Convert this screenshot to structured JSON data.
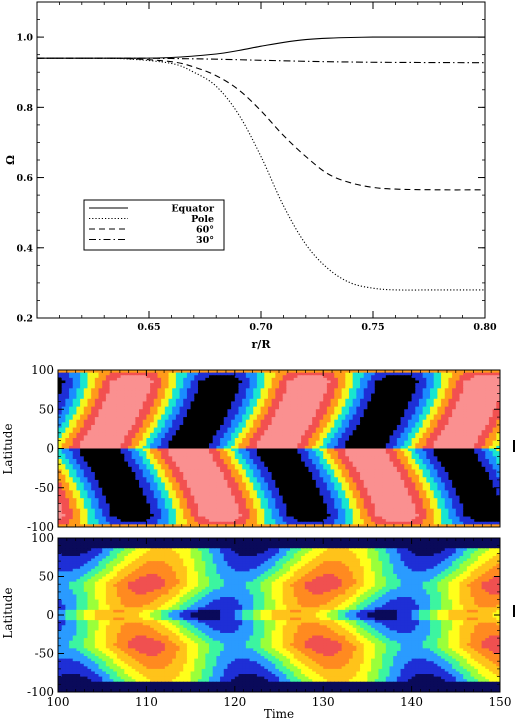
{
  "chart_data": [
    {
      "type": "line",
      "xlabel": "r/R",
      "ylabel": "Ω",
      "xlim": [
        0.6,
        0.8
      ],
      "ylim": [
        0.2,
        1.1
      ],
      "x_ticks": [
        "0.65",
        "0.70",
        "0.75",
        "0.80"
      ],
      "y_ticks": [
        "0.2",
        "0.4",
        "0.6",
        "0.8",
        "1.0"
      ],
      "legend_position": "lower-left",
      "series": [
        {
          "name": "Equator",
          "style": "solid",
          "x": [
            0.6,
            0.62,
            0.64,
            0.66,
            0.68,
            0.69,
            0.7,
            0.71,
            0.72,
            0.73,
            0.74,
            0.75,
            0.76,
            0.78,
            0.8
          ],
          "values": [
            0.94,
            0.94,
            0.94,
            0.942,
            0.952,
            0.962,
            0.974,
            0.985,
            0.993,
            0.997,
            0.999,
            1.0,
            1.0,
            1.0,
            1.0
          ]
        },
        {
          "name": "Pole",
          "style": "dotted",
          "x": [
            0.6,
            0.62,
            0.64,
            0.66,
            0.67,
            0.68,
            0.69,
            0.7,
            0.71,
            0.72,
            0.73,
            0.74,
            0.75,
            0.76,
            0.78,
            0.8
          ],
          "values": [
            0.94,
            0.94,
            0.938,
            0.925,
            0.9,
            0.86,
            0.78,
            0.66,
            0.52,
            0.41,
            0.34,
            0.3,
            0.285,
            0.28,
            0.28,
            0.28
          ]
        },
        {
          "name": "60°",
          "style": "dashed",
          "x": [
            0.6,
            0.62,
            0.64,
            0.66,
            0.67,
            0.68,
            0.69,
            0.7,
            0.71,
            0.72,
            0.73,
            0.74,
            0.75,
            0.76,
            0.78,
            0.8
          ],
          "values": [
            0.94,
            0.94,
            0.939,
            0.93,
            0.915,
            0.89,
            0.85,
            0.79,
            0.72,
            0.66,
            0.61,
            0.585,
            0.572,
            0.567,
            0.565,
            0.565
          ]
        },
        {
          "name": "30°",
          "style": "dashdot",
          "x": [
            0.6,
            0.64,
            0.66,
            0.68,
            0.7,
            0.72,
            0.74,
            0.76,
            0.8
          ],
          "values": [
            0.94,
            0.94,
            0.939,
            0.937,
            0.934,
            0.931,
            0.929,
            0.928,
            0.927
          ]
        }
      ]
    },
    {
      "type": "heatmap",
      "xlabel": "",
      "ylabel": "Latitude",
      "xlim": [
        100,
        150
      ],
      "ylim": [
        -100,
        100
      ],
      "y_ticks": [
        "-100",
        "-50",
        "0",
        "50",
        "100"
      ],
      "colorscale": [
        "#000000",
        "#1e2fd6",
        "#1a8cff",
        "#18e6d0",
        "#f5f51a",
        "#ff9a1a",
        "#f25050",
        "#fa9090"
      ],
      "period": 20,
      "phase_offset": 3
    },
    {
      "type": "heatmap",
      "xlabel": "Time",
      "ylabel": "Latitude",
      "xlim": [
        100,
        150
      ],
      "ylim": [
        -100,
        100
      ],
      "x_ticks": [
        "100",
        "110",
        "120",
        "130",
        "140",
        "150"
      ],
      "y_ticks": [
        "-100",
        "-50",
        "0",
        "50",
        "100"
      ],
      "colorscale": [
        "#0a0a5a",
        "#1e2fd6",
        "#2a9bff",
        "#3cf5a0",
        "#9aff3a",
        "#ffff1a",
        "#ffc31a",
        "#ff8a20",
        "#f05050"
      ],
      "period": 20,
      "phase_offset": 7
    }
  ]
}
